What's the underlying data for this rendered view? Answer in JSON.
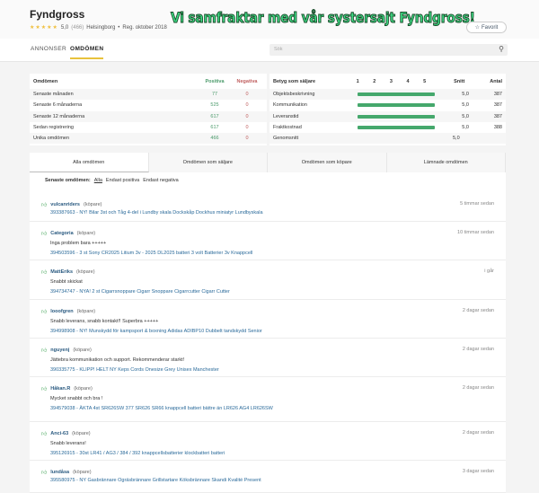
{
  "header": {
    "title": "Fyndgross",
    "rating": "5,0",
    "count": "(466)",
    "location": "Helsingborg",
    "registered": "Reg. oktober 2018",
    "stars": 5,
    "banner": "Vi samfraktar med vår systersajt Fyndgross!",
    "favorite": "Favorit"
  },
  "nav": {
    "tabs": [
      "ANNONSER",
      "OMDÖMEN"
    ],
    "active": "OMDÖMEN",
    "search_placeholder": "Sök"
  },
  "summary": {
    "headers": [
      "Omdömen",
      "Positiva",
      "Negativa"
    ],
    "rows": [
      [
        "Senaste månaden",
        "77",
        "0"
      ],
      [
        "Senaste 6 månaderna",
        "525",
        "0"
      ],
      [
        "Senaste 12 månaderna",
        "617",
        "0"
      ],
      [
        "Sedan registrering",
        "617",
        "0"
      ],
      [
        "Unika omdömen",
        "466",
        "0"
      ]
    ]
  },
  "seller": {
    "headers": [
      "Betyg som säljare",
      "1",
      "2",
      "3",
      "4",
      "5",
      "Snitt",
      "Antal"
    ],
    "rows": [
      {
        "label": "Objektsbeskrivning",
        "avg": "5,0",
        "count": "387",
        "value": 5
      },
      {
        "label": "Kommunikation",
        "avg": "5,0",
        "count": "387",
        "value": 5
      },
      {
        "label": "Leveranstid",
        "avg": "5,0",
        "count": "387",
        "value": 5
      },
      {
        "label": "Fraktkostnad",
        "avg": "5,0",
        "count": "388",
        "value": 5
      }
    ],
    "overall_label": "Genomsnitt",
    "overall": "5,0"
  },
  "tabs": [
    "Alla omdömen",
    "Omdömen som säljare",
    "Omdömen som köpare",
    "Lämnade omdömen"
  ],
  "filter": {
    "label": "Senaste omdömen:",
    "options": [
      "Alla",
      "Endast positiva",
      "Endast negativa"
    ],
    "active": "Alla"
  },
  "reviews": [
    {
      "user": "vulcanriders",
      "role": "(köpare)",
      "ago": "5 timmar sedan",
      "text": "",
      "item": "393387663 - NY! Bilar 3st och Tåg 4-del i Lundby skala Dockskåp Dockhus miniatyr Lundbyskala"
    },
    {
      "user": "Categoria",
      "role": "(köpare)",
      "ago": "10 timmar sedan",
      "text": "Inga problem bara +++++",
      "item": "394503596 - 3 st Sony CR2025 Litium 3v - 2025 DL2025 batteri 3 volt Batterier 3v Knappcell"
    },
    {
      "user": "MattEriks",
      "role": "(köpare)",
      "ago": "i går",
      "text": "Snabbt skickat",
      "item": "394734747 - NYA! 2 st Cigarrsnoppare Cigarr Snoppare Cigarrcutter Cigarr Cutter"
    },
    {
      "user": "looofgren",
      "role": "(köpare)",
      "ago": "2 dagar sedan",
      "text": "Snabb leverans, snabb kontakt!! Superbra +++++",
      "item": "394998908 - NY! Munskydd för kampsport & boxning Adidas ADIBP10 Dubbelt tandskydd Senior"
    },
    {
      "user": "nguyenj",
      "role": "(köpare)",
      "ago": "2 dagar sedan",
      "text": "Jättebra kommunikation och support. Rekommenderar starkt!",
      "item": "390335775 - KLIPP! HELT NY Keps Cords Onesize Grey Unisex Manchester"
    },
    {
      "user": "Håkan.R",
      "role": "(köpare)",
      "ago": "2 dagar sedan",
      "text": "Mycket snabbt och bra !",
      "item": "394579038 - ÄKTA 4st SR626SW 377 SR626 SR66 knappcell batteri bättre än LR626 AG4 LR626SW"
    },
    {
      "user": "Anci-63",
      "role": "(köpare)",
      "ago": "2 dagar sedan",
      "text": "Snabb leverans!",
      "item": "395126915 - 30st LR41 / AG3 / 384 / 392 knappcellsbatterier klockbatteri batteri"
    },
    {
      "user": "lundåsa",
      "role": "(köpare)",
      "ago": "3 dagar sedan",
      "text": "",
      "item": "395580975 - NY Gasbrännare Ogräsbrännare Grillstartare Köksbrännare Skandi Kvalité Present"
    }
  ]
}
